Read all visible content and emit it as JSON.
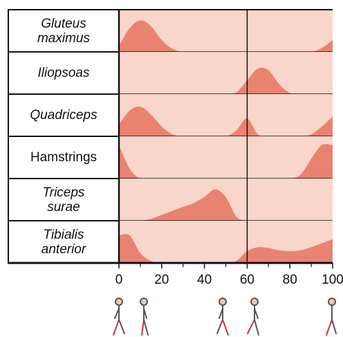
{
  "chart_data": {
    "type": "area",
    "x": [
      0,
      5,
      10,
      15,
      20,
      25,
      30,
      35,
      40,
      45,
      50,
      55,
      60,
      65,
      70,
      75,
      80,
      85,
      90,
      95,
      100
    ],
    "xlim": [
      0,
      100
    ],
    "xticks": [
      0,
      20,
      40,
      60,
      80,
      100
    ],
    "divider": 60,
    "background": "#f9d6ca",
    "color": "#ea8270",
    "series": [
      {
        "name": "Gluteus\nmaximus",
        "label_style": "italic",
        "values": [
          0.15,
          0.6,
          0.8,
          0.65,
          0.3,
          0.08,
          0,
          0,
          0,
          0,
          0,
          0,
          0,
          0,
          0,
          0,
          0,
          0,
          0,
          0.1,
          0.3
        ]
      },
      {
        "name": "Iliopsoas",
        "label_style": "italic",
        "values": [
          0,
          0,
          0,
          0,
          0,
          0,
          0,
          0,
          0,
          0,
          0,
          0.05,
          0.35,
          0.65,
          0.6,
          0.25,
          0.03,
          0,
          0,
          0,
          0
        ]
      },
      {
        "name": "Quadriceps",
        "label_style": "italic",
        "values": [
          0.3,
          0.65,
          0.75,
          0.55,
          0.25,
          0.05,
          0,
          0,
          0,
          0,
          0,
          0.15,
          0.45,
          0.05,
          0,
          0,
          0,
          0,
          0.05,
          0.25,
          0.5
        ]
      },
      {
        "name": "Hamstrings",
        "label_style": "normal",
        "values": [
          0.85,
          0.25,
          0,
          0,
          0,
          0,
          0,
          0,
          0,
          0,
          0,
          0,
          0,
          0,
          0,
          0,
          0,
          0.1,
          0.5,
          0.85,
          0.85
        ]
      },
      {
        "name": "Triceps\nsurae",
        "label_style": "italic",
        "values": [
          0,
          0,
          0,
          0.05,
          0.15,
          0.25,
          0.35,
          0.45,
          0.6,
          0.8,
          0.6,
          0.1,
          0,
          0,
          0,
          0,
          0,
          0,
          0,
          0,
          0
        ]
      },
      {
        "name": "Tibialis\nanterior",
        "label_style": "italic",
        "values": [
          0.7,
          0.7,
          0.25,
          0.05,
          0,
          0,
          0,
          0,
          0,
          0,
          0,
          0.05,
          0.3,
          0.4,
          0.38,
          0.32,
          0.3,
          0.32,
          0.4,
          0.5,
          0.6
        ]
      }
    ]
  }
}
